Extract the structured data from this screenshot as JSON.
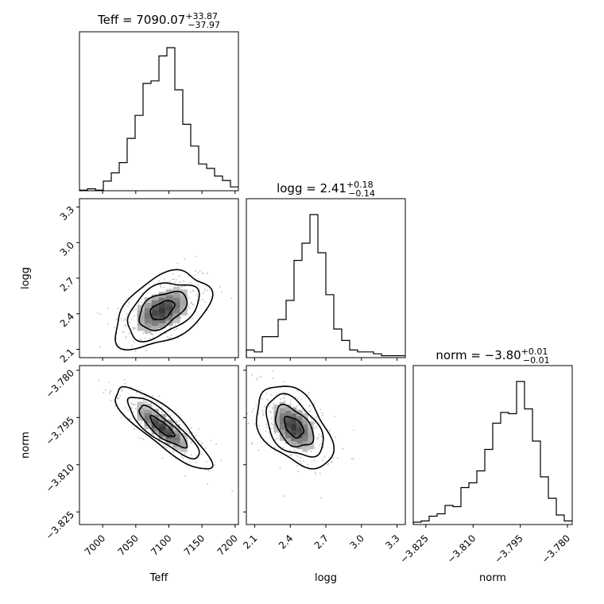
{
  "chart_data": {
    "type": "corner",
    "parameters": [
      {
        "key": "teff",
        "label": "Teff",
        "range": [
          6965,
          7205
        ],
        "ticks": [
          7000,
          7050,
          7100,
          7150,
          7200
        ],
        "tick_labels": [
          "7000",
          "7050",
          "7100",
          "7150",
          "7200"
        ],
        "title_prefix": "Teff = ",
        "title_value": "7090.07",
        "title_plus": "+33.87",
        "title_minus": "−37.97",
        "hist_edges_start": 6965,
        "hist_bin_width": 12,
        "hist_counts": [
          1,
          3,
          1,
          15,
          28,
          44,
          82,
          118,
          168,
          172,
          211,
          224,
          158,
          104,
          70,
          42,
          35,
          23,
          16,
          6
        ]
      },
      {
        "key": "logg",
        "label": "logg",
        "range": [
          2.03,
          3.37
        ],
        "ticks": [
          2.1,
          2.4,
          2.7,
          3.0,
          3.3
        ],
        "tick_labels": [
          "2.1",
          "2.4",
          "2.7",
          "3.0",
          "3.3"
        ],
        "title_prefix": "logg = ",
        "title_value": "2.41",
        "title_plus": "+0.18",
        "title_minus": "−0.14",
        "hist_edges_start": 2.03,
        "hist_bin_width": 0.067,
        "hist_counts": [
          4,
          3,
          11,
          11,
          20,
          30,
          51,
          60,
          75,
          55,
          33,
          15,
          9,
          4,
          3,
          3,
          2,
          1,
          1,
          1
        ]
      },
      {
        "key": "norm",
        "label": "norm",
        "range": [
          -3.829,
          -3.7785
        ],
        "ticks": [
          -3.825,
          -3.81,
          -3.795,
          -3.78
        ],
        "tick_labels": [
          "−3.825",
          "−3.810",
          "−3.795",
          "−3.780"
        ],
        "title_prefix": "norm = ",
        "title_value": "−3.80",
        "title_plus": "+0.01",
        "title_minus": "−0.01",
        "hist_edges_start": -3.829,
        "hist_bin_width": 0.002525,
        "hist_counts": [
          2,
          3,
          7,
          9,
          16,
          15,
          31,
          35,
          45,
          63,
          85,
          94,
          93,
          120,
          97,
          70,
          40,
          22,
          8,
          3
        ]
      }
    ],
    "pairs": [
      {
        "x": "teff",
        "y": "logg",
        "mean": [
          7090,
          2.43
        ],
        "sigma": [
          36,
          0.16
        ],
        "correlation": 0.45,
        "contour_levels_sigma": [
          0.5,
          1.0,
          1.5,
          2.0
        ]
      },
      {
        "x": "teff",
        "y": "norm",
        "mean": [
          7090,
          -3.798
        ],
        "sigma": [
          36,
          0.0065
        ],
        "correlation": -0.85,
        "contour_levels_sigma": [
          0.5,
          1.0,
          1.5,
          2.0
        ]
      },
      {
        "x": "logg",
        "y": "norm",
        "mean": [
          2.43,
          -3.798
        ],
        "sigma": [
          0.16,
          0.0065
        ],
        "correlation": -0.45,
        "contour_levels_sigma": [
          0.5,
          1.0,
          1.5,
          2.0
        ]
      }
    ],
    "colors": {
      "line": "#000000",
      "point": "#bdbdbd",
      "density_dark": "#000000"
    }
  }
}
